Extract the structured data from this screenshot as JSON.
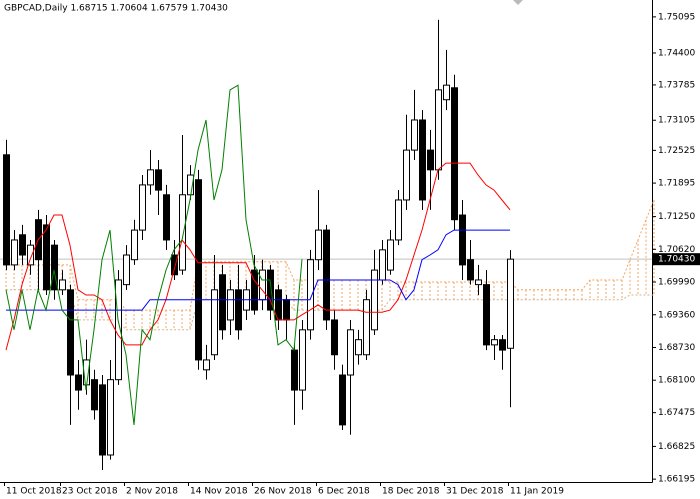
{
  "chart_data": {
    "type": "candlestick",
    "title": "GBPCAD,Daily  1.68715 1.70604 1.67579 1.70430",
    "categories": [
      "11 Oct 2018",
      null,
      null,
      null,
      null,
      null,
      null,
      "23 Oct 2018",
      null,
      null,
      null,
      null,
      null,
      null,
      null,
      "2 Nov 2018",
      null,
      null,
      null,
      null,
      null,
      null,
      null,
      "14 Nov 2018",
      null,
      null,
      null,
      null,
      null,
      null,
      null,
      "26 Nov 2018",
      null,
      null,
      null,
      null,
      null,
      null,
      null,
      "6 Dec 2018",
      null,
      null,
      null,
      null,
      null,
      null,
      null,
      "18 Dec 2018",
      null,
      null,
      null,
      null,
      null,
      null,
      null,
      "31 Dec 2018",
      null,
      null,
      null,
      null,
      null,
      null,
      null,
      "11 Jan 2019",
      null,
      null,
      null,
      null,
      null,
      null,
      null,
      null,
      null,
      null,
      null,
      null,
      null,
      null,
      null,
      null,
      null,
      null
    ],
    "candles": {
      "open": [
        1.7244,
        1.7032,
        1.709,
        1.7032,
        1.7119,
        1.7109,
        1.707,
        1.6984,
        1.6984,
        1.682,
        1.6801,
        1.6811,
        1.6801,
        1.6666,
        1.6811,
        1.6994,
        1.7042,
        1.7099,
        1.7186,
        1.7215,
        1.7167,
        1.7051,
        1.7022,
        1.7167,
        1.7196,
        1.683,
        1.6859,
        1.7013,
        1.6926,
        1.6984,
        1.6945,
        1.7022,
        1.6965,
        1.7022,
        1.6984,
        1.6965,
        1.6868,
        1.6791,
        1.6907,
        1.7042,
        1.7099,
        1.6926,
        1.682,
        1.682,
        1.6859,
        1.6859,
        1.6907,
        1.7003,
        1.7022,
        1.708,
        1.7157,
        1.7253,
        1.7311,
        1.7253,
        1.7215,
        1.735,
        1.7373,
        1.7128,
        1.7042,
        1.6994,
        1.6994,
        1.6878,
        1.6888,
        1.68715,
        null,
        null,
        null,
        null,
        null,
        null,
        null,
        null,
        null,
        null,
        null,
        null,
        null,
        null,
        null,
        null,
        null,
        null
      ],
      "high": [
        1.7273,
        1.7099,
        1.7109,
        1.708,
        1.7138,
        1.7128,
        1.708,
        1.7022,
        1.6994,
        1.6849,
        1.6888,
        1.683,
        1.682,
        1.6849,
        1.7022,
        1.707,
        1.7119,
        1.7205,
        1.7253,
        1.7234,
        1.7186,
        1.708,
        1.7282,
        1.7224,
        1.7215,
        1.6878,
        1.7051,
        1.7032,
        1.7003,
        1.7032,
        1.7003,
        1.7051,
        1.7042,
        1.7032,
        1.6994,
        1.6974,
        1.6878,
        1.6926,
        1.7061,
        1.7176,
        1.7109,
        1.6945,
        1.684,
        1.6926,
        1.6907,
        1.6984,
        1.7061,
        1.708,
        1.7099,
        1.7176,
        1.7321,
        1.7369,
        1.733,
        1.7292,
        1.7504,
        1.7446,
        1.7398,
        1.7157,
        1.708,
        1.7032,
        1.7022,
        1.6897,
        1.6897,
        1.70604,
        null,
        null,
        null,
        null,
        null,
        null,
        null,
        null,
        null,
        null,
        null,
        null,
        null,
        null,
        null,
        null,
        null,
        null
      ],
      "low": [
        1.7022,
        1.7022,
        1.7032,
        1.7013,
        1.6984,
        1.6974,
        1.6965,
        1.6974,
        1.6724,
        1.6753,
        1.6782,
        1.6734,
        1.6637,
        1.6657,
        1.6801,
        1.6984,
        1.7032,
        1.708,
        1.7167,
        1.7128,
        1.7061,
        1.7003,
        1.7013,
        1.7157,
        1.683,
        1.6811,
        1.6849,
        1.6888,
        1.6897,
        1.6888,
        1.6926,
        1.6936,
        1.6945,
        1.6926,
        1.6907,
        1.6888,
        1.6724,
        1.6753,
        1.6888,
        1.7022,
        1.6907,
        1.683,
        1.6714,
        1.6705,
        1.684,
        1.6849,
        1.6897,
        1.6994,
        1.7013,
        1.707,
        1.7138,
        1.7234,
        1.7138,
        1.7138,
        1.7196,
        1.733,
        1.7099,
        1.7003,
        1.6994,
        1.6974,
        1.6868,
        1.6849,
        1.683,
        1.67579,
        null,
        null,
        null,
        null,
        null,
        null,
        null,
        null,
        null,
        null,
        null,
        null,
        null,
        null,
        null,
        null,
        null,
        null
      ],
      "close": [
        1.7032,
        1.708,
        1.7051,
        1.707,
        1.7042,
        1.6984,
        1.6984,
        1.7003,
        1.682,
        1.6791,
        1.6849,
        1.6753,
        1.6666,
        1.6811,
        1.7003,
        1.7051,
        1.7099,
        1.7186,
        1.7215,
        1.7176,
        1.708,
        1.7013,
        1.7167,
        1.7205,
        1.6849,
        1.6849,
        1.6984,
        1.6907,
        1.6984,
        1.6907,
        1.6984,
        1.6945,
        1.7022,
        1.6945,
        1.6926,
        1.6926,
        1.6791,
        1.6907,
        1.7042,
        1.7099,
        1.6926,
        1.6859,
        1.6724,
        1.6907,
        1.6888,
        1.6965,
        1.7022,
        1.7061,
        1.708,
        1.7157,
        1.7253,
        1.7311,
        1.7157,
        1.7215,
        1.7369,
        1.7378,
        1.7119,
        1.7032,
        1.7003,
        1.7003,
        1.6878,
        1.6888,
        1.6868,
        1.7043,
        null,
        null,
        null,
        null,
        null,
        null,
        null,
        null,
        null,
        null,
        null,
        null,
        null,
        null,
        null,
        null,
        null,
        null
      ]
    },
    "cloud": {
      "span_a": {
        "color": "#f4a460",
        "values": [
          1.7032,
          1.7032,
          1.7032,
          1.7032,
          1.7032,
          1.7032,
          1.7032,
          1.7032,
          1.7032,
          1.6965,
          1.6965,
          1.6965,
          1.6965,
          1.6965,
          1.6965,
          1.6945,
          1.6945,
          1.6945,
          1.6945,
          1.6945,
          1.6945,
          1.6945,
          1.6945,
          1.6945,
          1.7038,
          1.7038,
          1.7038,
          1.7038,
          1.7038,
          1.7038,
          1.7038,
          1.7038,
          1.7038,
          1.7038,
          1.7038,
          1.7038,
          1.7003,
          1.7003,
          1.7003,
          1.7003,
          1.7003,
          1.7003,
          1.7003,
          1.7003,
          1.7003,
          1.7003,
          1.7003,
          1.7003,
          1.6999,
          1.6999,
          1.6999,
          1.6999,
          1.6999,
          1.6999,
          1.6999,
          1.6999,
          1.6999,
          1.6999,
          1.6999,
          1.6999,
          1.6999,
          1.6999,
          1.6999,
          1.6999,
          1.6984,
          1.6984,
          1.6984,
          1.6984,
          1.6984,
          1.6984,
          1.6984,
          1.6984,
          1.6984,
          1.7003,
          1.7003,
          1.7003,
          1.7003,
          1.7003,
          1.7042,
          1.708,
          1.7119,
          1.7157
        ]
      },
      "span_b": {
        "color": "#d2b48c",
        "values": [
          1.6984,
          1.6984,
          1.6984,
          1.6984,
          1.6984,
          1.6984,
          1.6984,
          1.6984,
          1.6984,
          1.6926,
          1.6926,
          1.6926,
          1.6926,
          1.6926,
          1.6926,
          1.6907,
          1.6907,
          1.6907,
          1.6907,
          1.6907,
          1.6907,
          1.6907,
          1.6907,
          1.6907,
          1.6965,
          1.6965,
          1.6965,
          1.6965,
          1.6965,
          1.6965,
          1.6965,
          1.6965,
          1.6965,
          1.6965,
          1.6965,
          1.6965,
          1.6945,
          1.6945,
          1.6945,
          1.6945,
          1.6945,
          1.6945,
          1.6945,
          1.6945,
          1.6945,
          1.6945,
          1.6945,
          1.6945,
          1.6965,
          1.6965,
          1.6965,
          1.6965,
          1.6965,
          1.6965,
          1.6965,
          1.6965,
          1.6965,
          1.6965,
          1.6965,
          1.6965,
          1.6965,
          1.6965,
          1.6965,
          1.6965,
          1.6965,
          1.6965,
          1.6965,
          1.6965,
          1.6965,
          1.6965,
          1.6965,
          1.6965,
          1.6965,
          1.6965,
          1.6965,
          1.6965,
          1.6965,
          1.6965,
          1.6974,
          1.6974,
          1.6974,
          1.6974
        ]
      }
    },
    "lines": [
      {
        "color": "#ff0000",
        "values": [
          1.6868,
          1.6926,
          1.6994,
          1.7042,
          1.708,
          1.7099,
          1.7128,
          1.7128,
          1.707,
          1.6984,
          1.6974,
          1.6974,
          1.6965,
          1.6926,
          1.6897,
          1.6878,
          1.6878,
          1.6878,
          1.6907,
          1.6926,
          1.6965,
          1.7022,
          1.708,
          1.7061,
          1.7036,
          1.7036,
          1.7036,
          1.7036,
          1.7036,
          1.7036,
          1.7036,
          1.7003,
          1.6984,
          1.6965,
          1.6926,
          1.6926,
          1.6926,
          1.6936,
          1.6945,
          1.6955,
          1.6945,
          1.6945,
          1.6945,
          1.6945,
          1.6945,
          1.6941,
          1.6941,
          1.6941,
          1.6945,
          1.6965,
          1.7003,
          1.7051,
          1.7099,
          1.7157,
          1.7215,
          1.7228,
          1.7228,
          1.7228,
          1.7228,
          1.7205,
          1.7186,
          1.7176,
          1.7157,
          1.7138,
          null,
          null,
          null,
          null,
          null,
          null,
          null,
          null,
          null,
          null,
          null,
          null,
          null,
          null,
          null,
          null,
          null,
          null
        ]
      },
      {
        "color": "#0000ff",
        "values": [
          1.6945,
          1.6945,
          1.6945,
          1.6945,
          1.6945,
          1.6945,
          1.6945,
          1.6945,
          1.6945,
          1.6945,
          1.6945,
          1.6945,
          1.6945,
          1.6945,
          1.6945,
          1.6945,
          1.6945,
          1.6945,
          1.6965,
          1.6965,
          1.6965,
          1.6965,
          1.6965,
          1.6965,
          1.6965,
          1.6965,
          1.6965,
          1.6965,
          1.6965,
          1.6965,
          1.6965,
          1.6965,
          1.6965,
          1.6965,
          1.6965,
          1.6965,
          1.6965,
          1.6965,
          1.6965,
          1.7003,
          1.7003,
          1.7003,
          1.7003,
          1.7003,
          1.7003,
          1.7003,
          1.7003,
          1.7003,
          1.7003,
          1.6994,
          1.6965,
          1.6984,
          1.7042,
          1.7051,
          1.7061,
          1.709,
          1.7099,
          1.7099,
          1.7099,
          1.7099,
          1.7099,
          1.7099,
          1.7099,
          1.7099,
          null,
          null,
          null,
          null,
          null,
          null,
          null,
          null,
          null,
          null,
          null,
          null,
          null,
          null,
          null,
          null,
          null,
          null
        ]
      },
      {
        "color": "#008000",
        "values": [
          1.6984,
          1.6907,
          1.6984,
          1.6907,
          1.6984,
          1.6945,
          1.7022,
          1.6945,
          1.6926,
          1.6926,
          1.6791,
          1.6907,
          1.7042,
          1.7099,
          1.6926,
          1.6859,
          1.6724,
          1.6907,
          1.6888,
          1.6965,
          1.7022,
          1.7061,
          1.708,
          1.7157,
          1.7253,
          1.7311,
          1.7157,
          1.7215,
          1.7369,
          1.7378,
          1.7119,
          1.7032,
          1.7003,
          1.7003,
          1.6878,
          1.6888,
          1.6868,
          1.7043,
          null,
          null,
          null,
          null,
          null,
          null,
          null,
          null,
          null,
          null,
          null,
          null,
          null,
          null,
          null,
          null,
          null,
          null,
          null,
          null,
          null,
          null,
          null,
          null,
          null,
          null,
          null,
          null,
          null,
          null,
          null,
          null,
          null,
          null,
          null,
          null,
          null,
          null,
          null,
          null,
          null,
          null,
          null,
          null
        ]
      }
    ],
    "current_price": {
      "value": 1.7043,
      "label": "1.70430"
    },
    "ylim": [
      1.6614,
      1.7542
    ],
    "yticks": [
      1.75095,
      {
        "value": 1.744,
        "label": "1.74400"
      },
      1.73785,
      1.73105,
      1.72525,
      1.71895,
      {
        "value": 1.7125,
        "label": "1.71250"
      },
      {
        "value": 1.7062,
        "label": "1.70620"
      },
      {
        "value": 1.6999,
        "label": "1.69990"
      },
      {
        "value": 1.6936,
        "label": "1.69360"
      },
      {
        "value": 1.6873,
        "label": "1.68730"
      },
      {
        "value": 1.681,
        "label": "1.68100"
      },
      1.67475,
      1.66825,
      1.66195
    ]
  }
}
